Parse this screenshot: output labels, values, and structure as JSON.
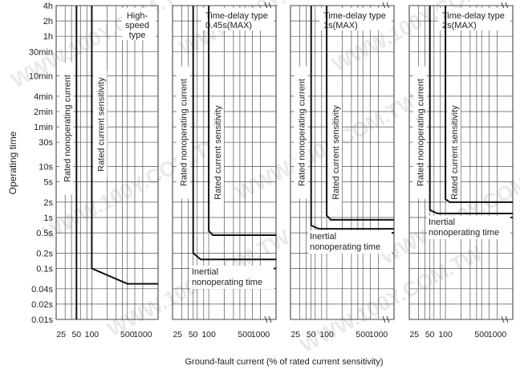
{
  "chart_data": {
    "type": "line",
    "xlabel": "Ground-fault current (% of rated current sensitivity)",
    "ylabel": "Operating time",
    "x_scale": "log",
    "y_scale": "log",
    "y_ticks": [
      {
        "label": "4h",
        "seconds": 14400
      },
      {
        "label": "2h",
        "seconds": 7200
      },
      {
        "label": "1h",
        "seconds": 3600
      },
      {
        "label": "30min",
        "seconds": 1800
      },
      {
        "label": "10min",
        "seconds": 600
      },
      {
        "label": "4min",
        "seconds": 240
      },
      {
        "label": "2min",
        "seconds": 120
      },
      {
        "label": "1min",
        "seconds": 60
      },
      {
        "label": "30s",
        "seconds": 30
      },
      {
        "label": "10s",
        "seconds": 10
      },
      {
        "label": "5s",
        "seconds": 5
      },
      {
        "label": "2s",
        "seconds": 2
      },
      {
        "label": "1s",
        "seconds": 1
      },
      {
        "label": "0.5s",
        "seconds": 0.5
      },
      {
        "label": "0.2s",
        "seconds": 0.2
      },
      {
        "label": "0.1s",
        "seconds": 0.1
      },
      {
        "label": "0.04s",
        "seconds": 0.04
      },
      {
        "label": "0.02s",
        "seconds": 0.02
      },
      {
        "label": "0.01s",
        "seconds": 0.01
      }
    ],
    "panels": [
      {
        "title": "High-\nspeed\ntype",
        "x_tick_labels": [
          "25",
          "50",
          "100",
          "500",
          "1000"
        ],
        "x_ticks": [
          25,
          50,
          100,
          500,
          1000
        ],
        "xlim": [
          20,
          2000
        ],
        "break": false,
        "label_nonoperating": "Rated nonoperating current",
        "label_sensitivity": "Rated current sensitivity",
        "inertial": "",
        "series": [
          {
            "x": [
              50,
              50
            ],
            "y": [
              14400,
              0.01
            ]
          },
          {
            "x": [
              100,
              100,
              500,
              2000
            ],
            "y": [
              14400,
              0.1,
              0.05,
              0.05
            ]
          }
        ]
      },
      {
        "title": "Time-delay type\n0.45s(MAX)",
        "x_tick_labels": [
          "25",
          "50",
          "100",
          "500",
          "1000"
        ],
        "x_ticks": [
          25,
          50,
          100,
          500,
          1000
        ],
        "xlim": [
          20,
          2000
        ],
        "break": true,
        "label_nonoperating": "Rated nonoperating current",
        "label_sensitivity": "Rated current sensitivity",
        "inertial": "Inertial\nnonoperating time",
        "series": [
          {
            "x": [
              50,
              50,
              70,
              2000
            ],
            "y": [
              14400,
              0.2,
              0.15,
              0.15
            ]
          },
          {
            "x": [
              100,
              100,
              120,
              2000
            ],
            "y": [
              14400,
              0.55,
              0.45,
              0.45
            ]
          },
          {
            "x": [
              100,
              2000
            ],
            "y": [
              0.1,
              0.1
            ]
          }
        ]
      },
      {
        "title": "Time-delay type\n1s(MAX)",
        "x_tick_labels": [
          "25",
          "50",
          "100",
          "500",
          "1000"
        ],
        "x_ticks": [
          25,
          50,
          100,
          500,
          1000
        ],
        "xlim": [
          20,
          2000
        ],
        "break": true,
        "label_nonoperating": "Rated nonoperating current",
        "label_sensitivity": "Rated current sensitivity",
        "inertial": "Inertial\nnonoperating time",
        "series": [
          {
            "x": [
              50,
              50,
              70,
              2000
            ],
            "y": [
              14400,
              0.7,
              0.6,
              0.6
            ]
          },
          {
            "x": [
              100,
              100,
              120,
              2000
            ],
            "y": [
              14400,
              1.1,
              0.9,
              0.9
            ]
          },
          {
            "x": [
              100,
              2000
            ],
            "y": [
              0.5,
              0.5
            ]
          }
        ]
      },
      {
        "title": "Time-delay type\n2s(MAX)",
        "x_tick_labels": [
          "25",
          "50",
          "100",
          "500",
          "1000"
        ],
        "x_ticks": [
          25,
          50,
          100,
          500,
          1000
        ],
        "xlim": [
          20,
          2000
        ],
        "break": true,
        "label_nonoperating": "Rated nonoperating current",
        "label_sensitivity": "Rated current sensitivity",
        "inertial": "Inertial\nnonoperating time",
        "series": [
          {
            "x": [
              50,
              50,
              70,
              2000
            ],
            "y": [
              14400,
              1.4,
              1.2,
              1.2
            ]
          },
          {
            "x": [
              100,
              100,
              120,
              2000
            ],
            "y": [
              14400,
              2.3,
              2,
              2
            ]
          },
          {
            "x": [
              100,
              2000
            ],
            "y": [
              1,
              1
            ]
          }
        ]
      }
    ]
  },
  "watermark": "WWW.100Y.COM.TW"
}
